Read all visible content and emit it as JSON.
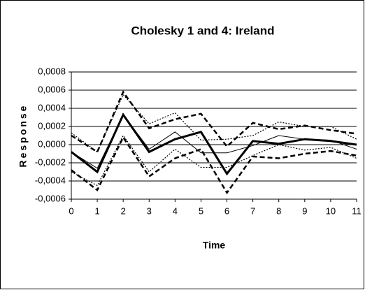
{
  "chart_data": {
    "type": "line",
    "title": "Cholesky 1 and 4: Ireland",
    "x_label": "Time",
    "y_label": "Response",
    "x": [
      0,
      1,
      2,
      3,
      4,
      5,
      6,
      7,
      8,
      9,
      10,
      11
    ],
    "xlim": [
      0,
      11
    ],
    "xticks": [
      0,
      1,
      2,
      3,
      4,
      5,
      6,
      7,
      8,
      9,
      10,
      11
    ],
    "ylim": [
      -0.0006,
      0.0008
    ],
    "yticks": [
      {
        "value": -0.0006,
        "label": "-0,0006"
      },
      {
        "value": -0.0004,
        "label": "-0,0004"
      },
      {
        "value": -0.0002,
        "label": "-0,0002"
      },
      {
        "value": 0,
        "label": "0,0000"
      },
      {
        "value": 0.0002,
        "label": "0,0002"
      },
      {
        "value": 0.0004,
        "label": "0,0004"
      },
      {
        "value": 0.0006,
        "label": "0,0006"
      },
      {
        "value": 0.0008,
        "label": "0,0008"
      }
    ],
    "grid": true,
    "series": [
      {
        "color": "#000000",
        "dash": "dashed",
        "width": 2.5,
        "values": [
          0.0001,
          -8e-05,
          0.00058,
          0.00018,
          0.00028,
          0.00034,
          -2e-05,
          0.00024,
          0.00017,
          0.00021,
          0.00016,
          0.00012
        ]
      },
      {
        "color": "#000000",
        "dash": "dashed",
        "width": 2.5,
        "values": [
          -0.00028,
          -0.0005,
          8e-05,
          -0.00035,
          -0.00015,
          -5e-05,
          -0.00053,
          -0.00013,
          -0.00015,
          -0.0001,
          -7e-05,
          -0.00012
        ]
      },
      {
        "color": "#000000",
        "dash": "dotted",
        "width": 1.2,
        "values": [
          0.00013,
          -8e-05,
          0.00055,
          0.00023,
          0.00035,
          5e-05,
          6e-05,
          0.0001,
          0.00025,
          0.0002,
          0.0002,
          6e-05
        ]
      },
      {
        "color": "#000000",
        "dash": "dotted",
        "width": 1.2,
        "values": [
          -0.0003,
          -0.00045,
          0.0001,
          -0.0003,
          -5e-05,
          -0.00025,
          -0.00025,
          -0.00012,
          0.0,
          -6e-05,
          -3e-05,
          -0.00015
        ]
      },
      {
        "color": "#000000",
        "dash": "solid",
        "width": 1,
        "values": [
          -8e-05,
          -0.00026,
          0.00033,
          -5e-05,
          0.00014,
          -9e-05,
          -9e-05,
          -1e-05,
          0.0001,
          6e-05,
          5e-05,
          -5e-05
        ]
      },
      {
        "color": "#000000",
        "dash": "solid",
        "width": 3,
        "values": [
          -8e-05,
          -0.0003,
          0.00033,
          -8e-05,
          6e-05,
          0.00014,
          -0.00032,
          4e-05,
          1e-05,
          6e-05,
          4e-05,
          0.0
        ]
      }
    ]
  }
}
